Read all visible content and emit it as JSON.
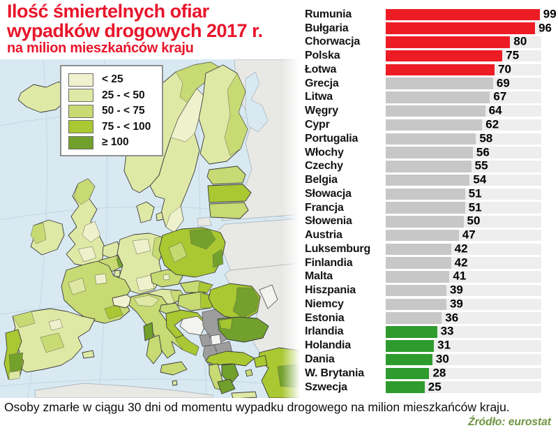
{
  "title": {
    "line1": "Ilość śmiertelnych ofiar",
    "line2": "wypadków drogowych 2017 r.",
    "line3": "na milion mieszkańców kraju"
  },
  "legend": {
    "items": [
      {
        "label": "< 25",
        "color": "#f0f2cf"
      },
      {
        "label": "25 - < 50",
        "color": "#dfe9a6"
      },
      {
        "label": "50 - < 75",
        "color": "#c7da73"
      },
      {
        "label": "75 - < 100",
        "color": "#a9c832"
      },
      {
        "label": "≥ 100",
        "color": "#71a02c"
      }
    ]
  },
  "chart_data": {
    "type": "bar",
    "orientation": "horizontal",
    "xlim": [
      0,
      100
    ],
    "title": "Ilość śmiertelnych ofiar wypadków drogowych 2017 r. na milion mieszkańców kraju",
    "bars": [
      {
        "label": "Rumunia",
        "value": 99,
        "group": "red",
        "bold": false
      },
      {
        "label": "Bułgaria",
        "value": 96,
        "group": "red",
        "bold": false
      },
      {
        "label": "Chorwacja",
        "value": 80,
        "group": "red",
        "bold": false
      },
      {
        "label": "Polska",
        "value": 75,
        "group": "red",
        "bold": true
      },
      {
        "label": "Łotwa",
        "value": 70,
        "group": "red",
        "bold": false
      },
      {
        "label": "Grecja",
        "value": 69,
        "group": "gray",
        "bold": false
      },
      {
        "label": "Litwa",
        "value": 67,
        "group": "gray",
        "bold": false
      },
      {
        "label": "Węgry",
        "value": 64,
        "group": "gray",
        "bold": false
      },
      {
        "label": "Cypr",
        "value": 62,
        "group": "gray",
        "bold": false
      },
      {
        "label": "Portugalia",
        "value": 58,
        "group": "gray",
        "bold": false
      },
      {
        "label": "Włochy",
        "value": 56,
        "group": "gray",
        "bold": false
      },
      {
        "label": "Czechy",
        "value": 55,
        "group": "gray",
        "bold": false
      },
      {
        "label": "Belgia",
        "value": 54,
        "group": "gray",
        "bold": false
      },
      {
        "label": "Słowacja",
        "value": 51,
        "group": "gray",
        "bold": false
      },
      {
        "label": "Francja",
        "value": 51,
        "group": "gray",
        "bold": false
      },
      {
        "label": "Słowenia",
        "value": 50,
        "group": "gray",
        "bold": false
      },
      {
        "label": "Austria",
        "value": 47,
        "group": "gray",
        "bold": false
      },
      {
        "label": "Luksemburg",
        "value": 42,
        "group": "gray",
        "bold": false
      },
      {
        "label": "Finlandia",
        "value": 42,
        "group": "gray",
        "bold": false
      },
      {
        "label": "Malta",
        "value": 41,
        "group": "gray",
        "bold": false
      },
      {
        "label": "Hiszpania",
        "value": 39,
        "group": "gray",
        "bold": false
      },
      {
        "label": "Niemcy",
        "value": 39,
        "group": "gray",
        "bold": false
      },
      {
        "label": "Estonia",
        "value": 36,
        "group": "gray",
        "bold": false
      },
      {
        "label": "Irlandia",
        "value": 33,
        "group": "green",
        "bold": false
      },
      {
        "label": "Holandia",
        "value": 31,
        "group": "green",
        "bold": false
      },
      {
        "label": "Dania",
        "value": 30,
        "group": "green",
        "bold": false
      },
      {
        "label": "W. Brytania",
        "value": 28,
        "group": "green",
        "bold": false
      },
      {
        "label": "Szwecja",
        "value": 25,
        "group": "green",
        "bold": false
      }
    ],
    "group_colors": {
      "red": "#ed1c24",
      "gray": "#c7c7c7",
      "green": "#2e9b2e",
      "track": "#eeeeee"
    }
  },
  "footer": {
    "caption": "Osoby zmarłe w ciągu 30 dni od momentu wypadku drogowego na milion mieszkańców kraju.",
    "source": "Źródło: eurostat"
  }
}
